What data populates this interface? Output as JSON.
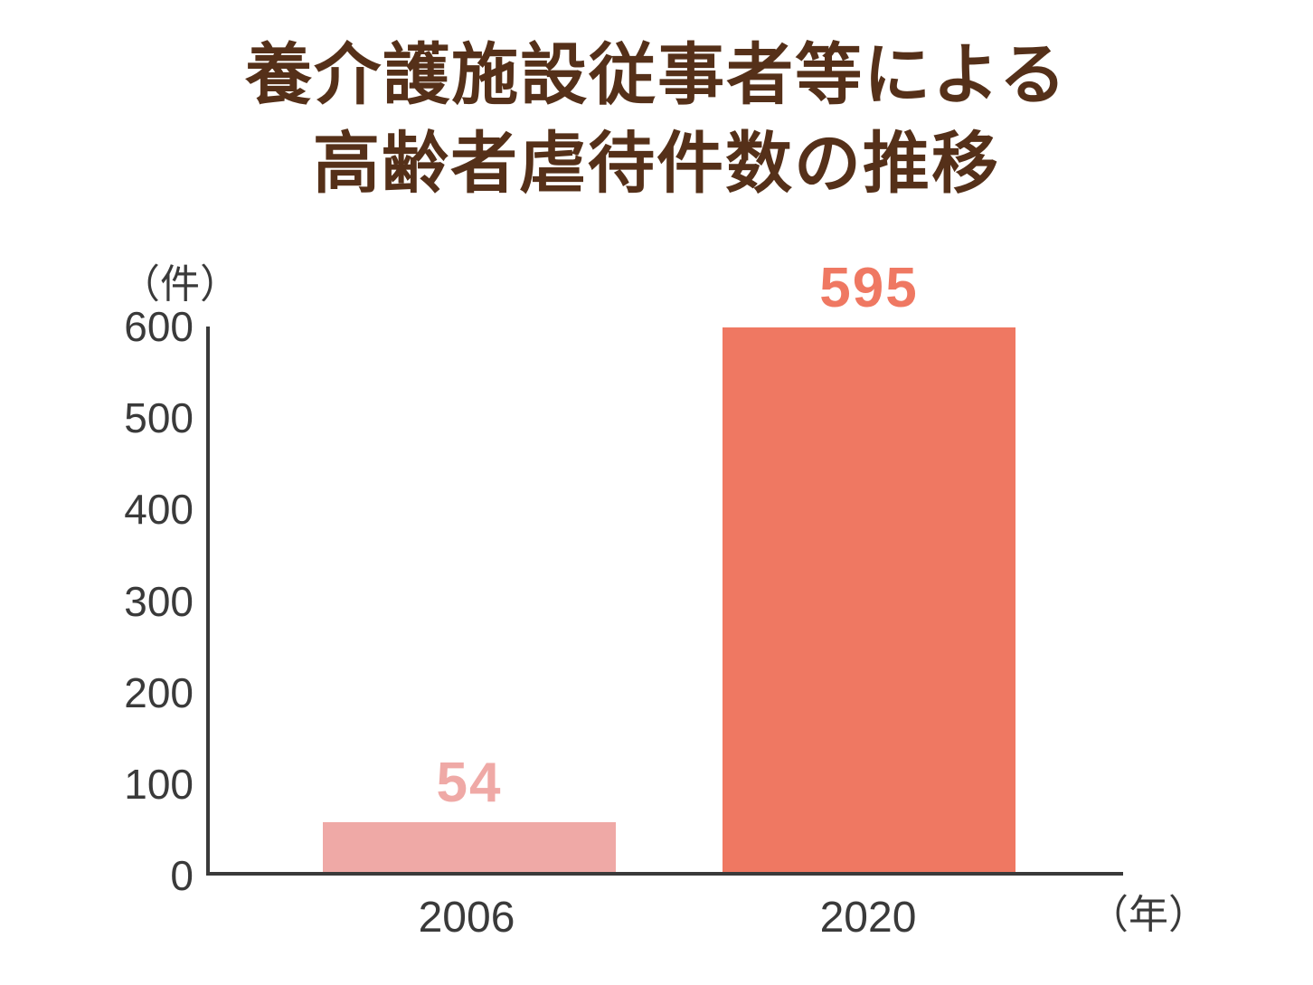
{
  "title": {
    "line1": "養介護施設従事者等による",
    "line2": "高齢者虐待件数の推移"
  },
  "chart_data": {
    "type": "bar",
    "title": "養介護施設従事者等による高齢者虐待件数の推移",
    "categories": [
      "2006",
      "2020"
    ],
    "values": [
      54,
      595
    ],
    "bar_colors": [
      "#efa9a6",
      "#ef7862"
    ],
    "value_label_colors": [
      "#efa9a6",
      "#ef7862"
    ],
    "xlabel": "年",
    "ylabel": "件",
    "x_unit_label": "（年）",
    "y_unit_label": "（件）",
    "y_ticks": [
      600,
      500,
      400,
      300,
      200,
      100,
      0
    ],
    "ylim": [
      0,
      600
    ],
    "grid": false,
    "legend": false
  },
  "colors": {
    "title_text": "#553019",
    "axis": "#3a3a3a",
    "tick_text": "#3a3a3a",
    "background": "#ffffff"
  }
}
